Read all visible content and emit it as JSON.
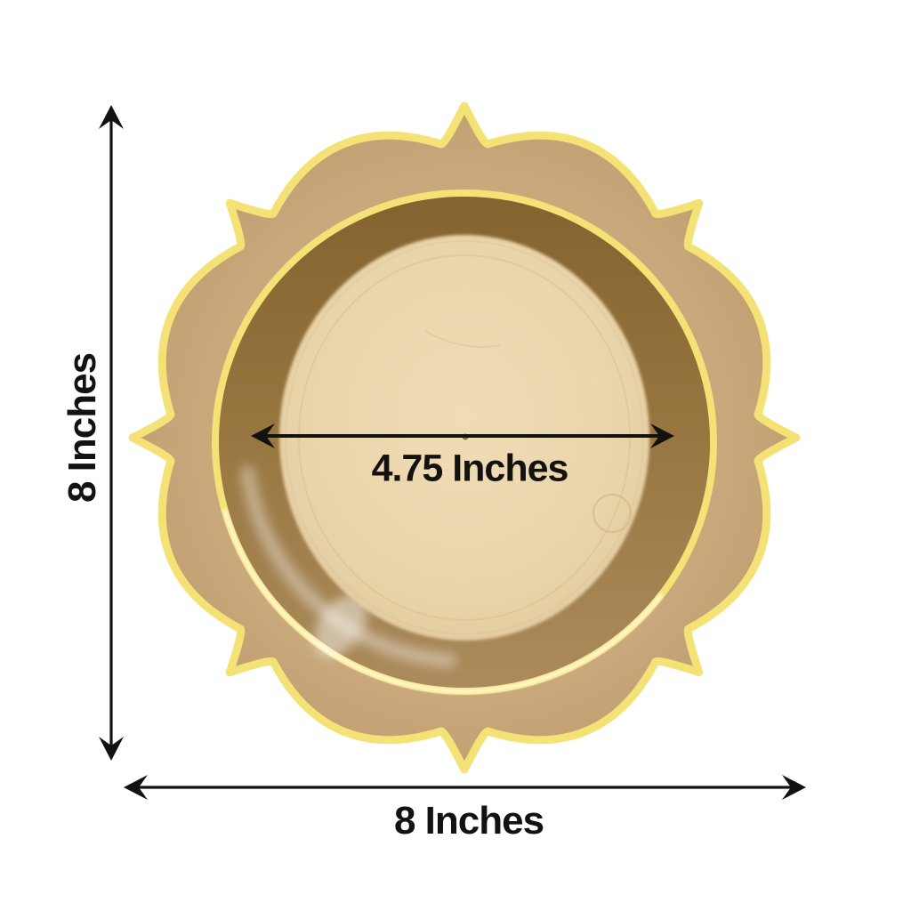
{
  "measurements": {
    "height": {
      "value": 8,
      "unit": "Inches",
      "label": "8 Inches"
    },
    "width": {
      "value": 8,
      "unit": "Inches",
      "label": "8 Inches"
    },
    "inner_diameter": {
      "value": 4.75,
      "unit": "Inches",
      "label": "4.75 Inches"
    }
  },
  "colors": {
    "gold_edge": "#F5E276",
    "rim_tan": "#C9A87C",
    "bowl_gold": "#96743E",
    "inner_surface": "#EAD5AB",
    "annotation_black": "#141210",
    "background": "#FFFFFF"
  }
}
